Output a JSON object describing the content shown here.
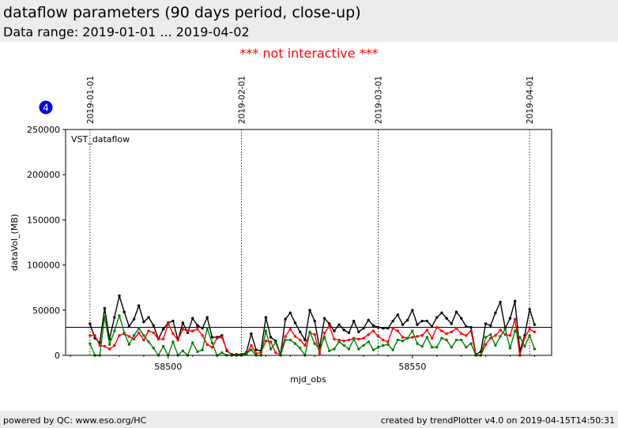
{
  "header": {
    "title": "dataflow parameters (90 days period, close-up)",
    "subtitle": "Data range: 2019-01-01 ... 2019-04-02"
  },
  "notice": "*** not interactive ***",
  "badge": {
    "value": "4",
    "color": "#0000ee"
  },
  "footer": {
    "left": "powered by QC: www.eso.org/HC",
    "right": "created by trendPlotter v4.0 on 2019-04-15T14:50:31"
  },
  "chart_data": {
    "type": "line",
    "xlabel": "mjd_obs",
    "ylabel": "dataVol_(MB)",
    "xlim": [
      58479,
      58578.5
    ],
    "ylim": [
      0,
      250000
    ],
    "x_ticks": [
      58500,
      58550
    ],
    "y_ticks": [
      0,
      50000,
      100000,
      150000,
      200000,
      250000
    ],
    "y_tick_labels": [
      "0",
      "50000",
      "100000",
      "150000",
      "200000",
      "250000"
    ],
    "panel_label": "VST_dataflow",
    "reference_line": {
      "y": 31000,
      "color": "#000000"
    },
    "date_markers": [
      {
        "label": "2019-01-01",
        "x": 58484
      },
      {
        "label": "2019-02-01",
        "x": 58515
      },
      {
        "label": "2019-03-01",
        "x": 58543
      },
      {
        "label": "2019-04-01",
        "x": 58574
      }
    ],
    "series": [
      {
        "color": "#000000",
        "points": [
          [
            58484,
            35000
          ],
          [
            58485,
            19000
          ],
          [
            58486,
            14000
          ],
          [
            58487,
            52000
          ],
          [
            58488,
            18000
          ],
          [
            58489,
            42000
          ],
          [
            58490,
            66000
          ],
          [
            58491,
            48000
          ],
          [
            58492,
            32000
          ],
          [
            58493,
            40000
          ],
          [
            58494,
            55000
          ],
          [
            58495,
            37000
          ],
          [
            58496,
            42000
          ],
          [
            58497,
            33000
          ],
          [
            58498,
            18000
          ],
          [
            58499,
            29000
          ],
          [
            58500,
            36000
          ],
          [
            58501,
            38000
          ],
          [
            58502,
            17000
          ],
          [
            58503,
            36000
          ],
          [
            58504,
            25000
          ],
          [
            58505,
            41000
          ],
          [
            58506,
            33000
          ],
          [
            58507,
            30000
          ],
          [
            58508,
            42000
          ],
          [
            58509,
            20000
          ],
          [
            58510,
            20000
          ],
          [
            58511,
            22000
          ],
          [
            58512,
            5000
          ],
          [
            58513,
            1000
          ],
          [
            58514,
            1000
          ],
          [
            58515,
            1000
          ],
          [
            58516,
            3000
          ],
          [
            58517,
            24000
          ],
          [
            58518,
            6000
          ],
          [
            58519,
            5000
          ],
          [
            58520,
            42000
          ],
          [
            58521,
            20000
          ],
          [
            58522,
            16000
          ],
          [
            58523,
            1000
          ],
          [
            58524,
            40000
          ],
          [
            58525,
            47000
          ],
          [
            58526,
            36000
          ],
          [
            58527,
            26000
          ],
          [
            58528,
            17000
          ],
          [
            58529,
            50000
          ],
          [
            58530,
            38000
          ],
          [
            58531,
            8000
          ],
          [
            58532,
            41000
          ],
          [
            58533,
            35000
          ],
          [
            58534,
            27000
          ],
          [
            58535,
            34000
          ],
          [
            58536,
            28000
          ],
          [
            58537,
            25000
          ],
          [
            58538,
            38000
          ],
          [
            58539,
            26000
          ],
          [
            58540,
            30000
          ],
          [
            58541,
            39000
          ],
          [
            58542,
            33000
          ],
          [
            58543,
            31000
          ],
          [
            58544,
            30000
          ],
          [
            58545,
            30000
          ],
          [
            58546,
            38000
          ],
          [
            58547,
            45000
          ],
          [
            58548,
            34000
          ],
          [
            58549,
            39000
          ],
          [
            58550,
            50000
          ],
          [
            58551,
            34000
          ],
          [
            58552,
            38000
          ],
          [
            58553,
            38000
          ],
          [
            58554,
            32000
          ],
          [
            58555,
            42000
          ],
          [
            58556,
            47000
          ],
          [
            58557,
            41000
          ],
          [
            58558,
            35000
          ],
          [
            58559,
            48000
          ],
          [
            58560,
            41000
          ],
          [
            58561,
            32000
          ],
          [
            58562,
            31000
          ],
          [
            58563,
            1000
          ],
          [
            58564,
            4000
          ],
          [
            58565,
            35000
          ],
          [
            58566,
            33000
          ],
          [
            58567,
            47000
          ],
          [
            58568,
            59000
          ],
          [
            58569,
            30000
          ],
          [
            58570,
            41000
          ],
          [
            58571,
            60000
          ],
          [
            58572,
            5000
          ],
          [
            58573,
            22000
          ],
          [
            58574,
            51000
          ],
          [
            58575,
            34000
          ]
        ]
      },
      {
        "color": "#ff0000",
        "points": [
          [
            58484,
            22000
          ],
          [
            58485,
            22000
          ],
          [
            58486,
            11000
          ],
          [
            58487,
            10000
          ],
          [
            58488,
            7000
          ],
          [
            58489,
            11000
          ],
          [
            58490,
            22000
          ],
          [
            58491,
            24000
          ],
          [
            58492,
            21000
          ],
          [
            58493,
            18000
          ],
          [
            58494,
            25000
          ],
          [
            58495,
            17000
          ],
          [
            58496,
            27000
          ],
          [
            58497,
            25000
          ],
          [
            58498,
            18000
          ],
          [
            58499,
            18000
          ],
          [
            58500,
            35000
          ],
          [
            58501,
            24000
          ],
          [
            58502,
            17000
          ],
          [
            58503,
            29000
          ],
          [
            58504,
            27000
          ],
          [
            58505,
            27000
          ],
          [
            58506,
            29000
          ],
          [
            58507,
            22000
          ],
          [
            58508,
            12000
          ],
          [
            58509,
            9000
          ],
          [
            58510,
            19000
          ],
          [
            58511,
            20000
          ],
          [
            58512,
            6000
          ],
          [
            58513,
            0
          ],
          [
            58514,
            0
          ],
          [
            58515,
            0
          ],
          [
            58516,
            1000
          ],
          [
            58517,
            11000
          ],
          [
            58518,
            2000
          ],
          [
            58519,
            3000
          ],
          [
            58520,
            16000
          ],
          [
            58521,
            15000
          ],
          [
            58522,
            3000
          ],
          [
            58523,
            1000
          ],
          [
            58524,
            21000
          ],
          [
            58525,
            29000
          ],
          [
            58526,
            21000
          ],
          [
            58527,
            17000
          ],
          [
            58528,
            11000
          ],
          [
            58529,
            25000
          ],
          [
            58530,
            23000
          ],
          [
            58531,
            2000
          ],
          [
            58532,
            25000
          ],
          [
            58533,
            32000
          ],
          [
            58534,
            18000
          ],
          [
            58535,
            17000
          ],
          [
            58536,
            16000
          ],
          [
            58537,
            17000
          ],
          [
            58538,
            19000
          ],
          [
            58539,
            18000
          ],
          [
            58540,
            19000
          ],
          [
            58541,
            23000
          ],
          [
            58542,
            27000
          ],
          [
            58543,
            21000
          ],
          [
            58544,
            17000
          ],
          [
            58545,
            15000
          ],
          [
            58546,
            30000
          ],
          [
            58547,
            27000
          ],
          [
            58548,
            20000
          ],
          [
            58549,
            19000
          ],
          [
            58550,
            20000
          ],
          [
            58551,
            21000
          ],
          [
            58552,
            22000
          ],
          [
            58553,
            28000
          ],
          [
            58554,
            19000
          ],
          [
            58555,
            31000
          ],
          [
            58556,
            27000
          ],
          [
            58557,
            24000
          ],
          [
            58558,
            26000
          ],
          [
            58559,
            30000
          ],
          [
            58560,
            24000
          ],
          [
            58561,
            22000
          ],
          [
            58562,
            27000
          ],
          [
            58563,
            0
          ],
          [
            58564,
            0
          ],
          [
            58565,
            12000
          ],
          [
            58566,
            19000
          ],
          [
            58567,
            22000
          ],
          [
            58568,
            28000
          ],
          [
            58569,
            23000
          ],
          [
            58570,
            22000
          ],
          [
            58571,
            40000
          ],
          [
            58572,
            0
          ],
          [
            58573,
            20000
          ],
          [
            58574,
            29000
          ],
          [
            58575,
            26000
          ]
        ]
      },
      {
        "color": "#008000",
        "points": [
          [
            58484,
            13000
          ],
          [
            58485,
            0
          ],
          [
            58486,
            0
          ],
          [
            58487,
            43000
          ],
          [
            58488,
            12000
          ],
          [
            58489,
            27000
          ],
          [
            58490,
            44000
          ],
          [
            58491,
            25000
          ],
          [
            58492,
            12000
          ],
          [
            58493,
            22000
          ],
          [
            58494,
            30000
          ],
          [
            58495,
            22000
          ],
          [
            58496,
            15000
          ],
          [
            58497,
            8000
          ],
          [
            58498,
            0
          ],
          [
            58499,
            10000
          ],
          [
            58500,
            0
          ],
          [
            58501,
            15000
          ],
          [
            58502,
            0
          ],
          [
            58503,
            5000
          ],
          [
            58504,
            0
          ],
          [
            58505,
            14000
          ],
          [
            58506,
            4000
          ],
          [
            58507,
            6000
          ],
          [
            58508,
            30000
          ],
          [
            58509,
            14000
          ],
          [
            58510,
            0
          ],
          [
            58511,
            3000
          ],
          [
            58512,
            0
          ],
          [
            58513,
            0
          ],
          [
            58514,
            0
          ],
          [
            58515,
            0
          ],
          [
            58516,
            2000
          ],
          [
            58517,
            6000
          ],
          [
            58518,
            0
          ],
          [
            58519,
            0
          ],
          [
            58520,
            27000
          ],
          [
            58521,
            7000
          ],
          [
            58522,
            14000
          ],
          [
            58523,
            0
          ],
          [
            58524,
            17000
          ],
          [
            58525,
            17000
          ],
          [
            58526,
            13000
          ],
          [
            58527,
            8000
          ],
          [
            58528,
            0
          ],
          [
            58529,
            26000
          ],
          [
            58530,
            13000
          ],
          [
            58531,
            7000
          ],
          [
            58532,
            20000
          ],
          [
            58533,
            5000
          ],
          [
            58534,
            7000
          ],
          [
            58535,
            15000
          ],
          [
            58536,
            11000
          ],
          [
            58537,
            7000
          ],
          [
            58538,
            18000
          ],
          [
            58539,
            7000
          ],
          [
            58540,
            11000
          ],
          [
            58541,
            15000
          ],
          [
            58542,
            6000
          ],
          [
            58543,
            9000
          ],
          [
            58544,
            11000
          ],
          [
            58545,
            12000
          ],
          [
            58546,
            6000
          ],
          [
            58547,
            17000
          ],
          [
            58548,
            16000
          ],
          [
            58549,
            19000
          ],
          [
            58550,
            27000
          ],
          [
            58551,
            13000
          ],
          [
            58552,
            10000
          ],
          [
            58553,
            20000
          ],
          [
            58554,
            9000
          ],
          [
            58555,
            9000
          ],
          [
            58556,
            19000
          ],
          [
            58557,
            17000
          ],
          [
            58558,
            9000
          ],
          [
            58559,
            17000
          ],
          [
            58560,
            17000
          ],
          [
            58561,
            9000
          ],
          [
            58562,
            13000
          ],
          [
            58563,
            0
          ],
          [
            58564,
            0
          ],
          [
            58565,
            20000
          ],
          [
            58566,
            23000
          ],
          [
            58567,
            11000
          ],
          [
            58568,
            21000
          ],
          [
            58569,
            29000
          ],
          [
            58570,
            8000
          ],
          [
            58571,
            27000
          ],
          [
            58572,
            20000
          ],
          [
            58573,
            10000
          ],
          [
            58574,
            22000
          ],
          [
            58575,
            7000
          ]
        ]
      }
    ]
  }
}
